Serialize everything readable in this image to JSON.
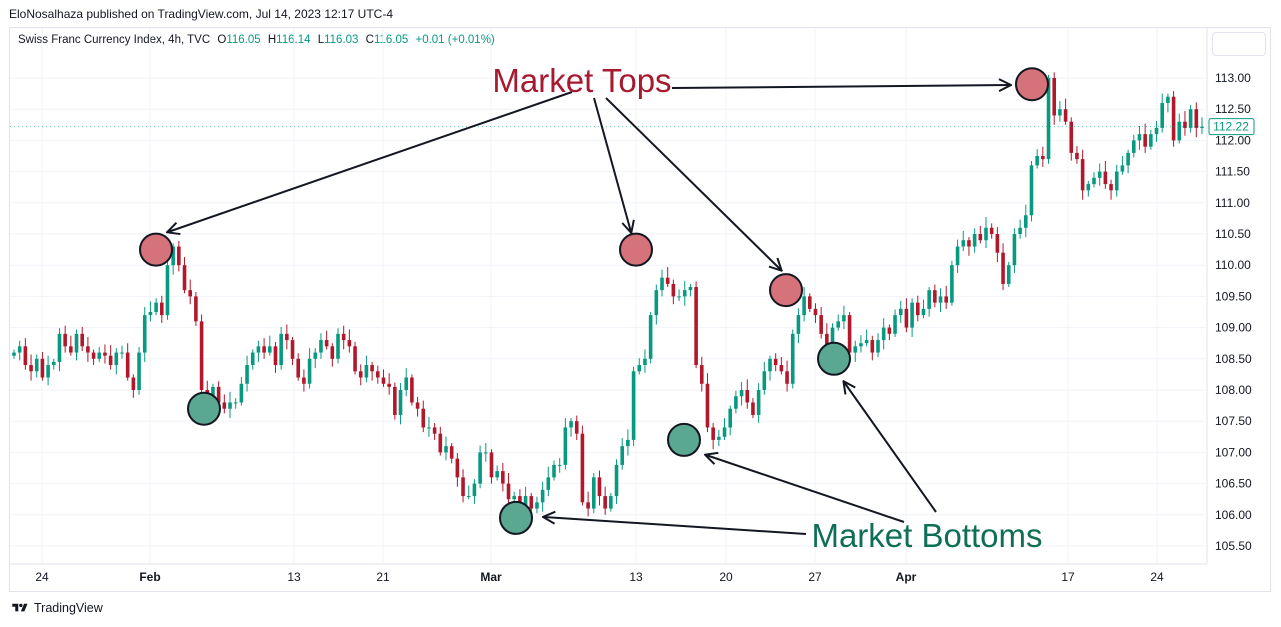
{
  "attribution": "EloNosalhaza published on TradingView.com, Jul 14, 2023 12:17 UTC-4",
  "legend": {
    "symbol": "Swiss Franc Currency Index, 4h, TVC",
    "o_label": "O",
    "o_value": "116.05",
    "h_label": "H",
    "h_value": "116.14",
    "l_label": "L",
    "l_value": "116.03",
    "c_label": "C",
    "c_value": "116.05",
    "change": "+0.01 (+0.01%)"
  },
  "footer": {
    "brand": "TradingView",
    "logo_icon": "tradingview-logo-icon"
  },
  "colors": {
    "up": "#089981",
    "down": "#b2182b",
    "top_marker": "#d5727a",
    "bottom_marker": "#5aa892",
    "tops_text": "#a6192e",
    "bottoms_text": "#0f6e56",
    "price_tag": "#089981"
  },
  "annotations": {
    "tops_label": "Market Tops",
    "bottoms_label": "Market Bottoms"
  },
  "chart_data": {
    "type": "candlestick",
    "title": "Swiss Franc Currency Index, 4h, TVC",
    "y_axis_side": "right",
    "y_ticks": [
      "113.00",
      "112.50",
      "112.00",
      "111.50",
      "111.00",
      "110.50",
      "110.00",
      "109.50",
      "109.00",
      "108.50",
      "108.00",
      "107.50",
      "107.00",
      "106.50",
      "106.00",
      "105.50"
    ],
    "x_ticks": [
      {
        "label": "24",
        "bold": false
      },
      {
        "label": "Feb",
        "bold": true
      },
      {
        "label": "13",
        "bold": false
      },
      {
        "label": "21",
        "bold": false
      },
      {
        "label": "Mar",
        "bold": true
      },
      {
        "label": "13",
        "bold": false
      },
      {
        "label": "20",
        "bold": false
      },
      {
        "label": "27",
        "bold": false
      },
      {
        "label": "Apr",
        "bold": true
      },
      {
        "label": "17",
        "bold": false
      },
      {
        "label": "24",
        "bold": false
      }
    ],
    "ylim": [
      105.2,
      113.8
    ],
    "last_price": "112.22",
    "grid": true,
    "closes": [
      108.6,
      108.7,
      108.4,
      108.3,
      108.5,
      108.2,
      108.4,
      108.45,
      108.9,
      108.7,
      108.6,
      108.9,
      108.7,
      108.6,
      108.5,
      108.6,
      108.55,
      108.4,
      108.6,
      108.6,
      108.2,
      108.0,
      108.6,
      109.2,
      109.25,
      109.4,
      109.2,
      110.0,
      110.3,
      110.0,
      109.6,
      109.5,
      109.1,
      108.0,
      107.9,
      108.05,
      107.8,
      107.7,
      107.8,
      107.8,
      108.1,
      108.4,
      108.6,
      108.7,
      108.6,
      108.7,
      108.4,
      108.9,
      108.8,
      108.5,
      108.2,
      108.1,
      108.5,
      108.6,
      108.8,
      108.7,
      108.5,
      108.9,
      108.8,
      108.7,
      108.3,
      108.2,
      108.4,
      108.3,
      108.2,
      108.1,
      108.05,
      107.6,
      108.0,
      108.2,
      107.8,
      107.7,
      107.4,
      107.4,
      107.3,
      107.0,
      107.1,
      106.9,
      106.6,
      106.3,
      106.3,
      106.5,
      107.0,
      107.0,
      106.6,
      106.7,
      106.5,
      106.25,
      106.3,
      106.0,
      106.3,
      106.1,
      106.2,
      106.4,
      106.6,
      106.8,
      106.8,
      107.4,
      107.5,
      107.3,
      106.2,
      106.1,
      106.6,
      106.3,
      106.1,
      106.3,
      106.8,
      107.1,
      107.2,
      108.3,
      108.4,
      108.5,
      109.2,
      109.6,
      109.8,
      109.7,
      109.5,
      109.5,
      109.6,
      109.65,
      108.4,
      108.1,
      107.4,
      107.2,
      107.25,
      107.4,
      107.7,
      107.9,
      108.0,
      107.8,
      107.6,
      108.0,
      108.3,
      108.5,
      108.4,
      108.3,
      108.1,
      108.9,
      109.2,
      109.5,
      109.3,
      109.2,
      108.9,
      108.7,
      109.0,
      109.1,
      109.2,
      108.6,
      108.7,
      108.75,
      108.8,
      108.6,
      108.8,
      109.0,
      108.9,
      109.2,
      109.3,
      109.0,
      109.4,
      109.2,
      109.3,
      109.6,
      109.4,
      109.5,
      109.4,
      110.0,
      110.3,
      110.4,
      110.3,
      110.5,
      110.4,
      110.6,
      110.5,
      110.2,
      109.7,
      110.0,
      110.5,
      110.6,
      110.8,
      111.6,
      111.75,
      111.7,
      113.0,
      112.4,
      112.5,
      112.3,
      111.8,
      111.7,
      111.2,
      111.3,
      111.4,
      111.5,
      111.3,
      111.2,
      111.5,
      111.6,
      111.8,
      112.0,
      112.1,
      111.9,
      112.1,
      112.2,
      112.6,
      112.7,
      112.0,
      112.3,
      112.2,
      112.5,
      112.2,
      112.22
    ],
    "markers": {
      "tops": [
        {
          "label": "Market Tops",
          "price": 110.25
        },
        {
          "label": "Market Tops",
          "price": 110.25
        },
        {
          "label": "Market Tops",
          "price": 109.6
        },
        {
          "label": "Market Tops",
          "price": 112.9
        }
      ],
      "bottoms": [
        {
          "label": "Market Bottoms",
          "price": 107.7
        },
        {
          "label": "Market Bottoms",
          "price": 105.95
        },
        {
          "label": "Market Bottoms",
          "price": 107.2
        },
        {
          "label": "Market Bottoms",
          "price": 108.5
        }
      ]
    }
  }
}
